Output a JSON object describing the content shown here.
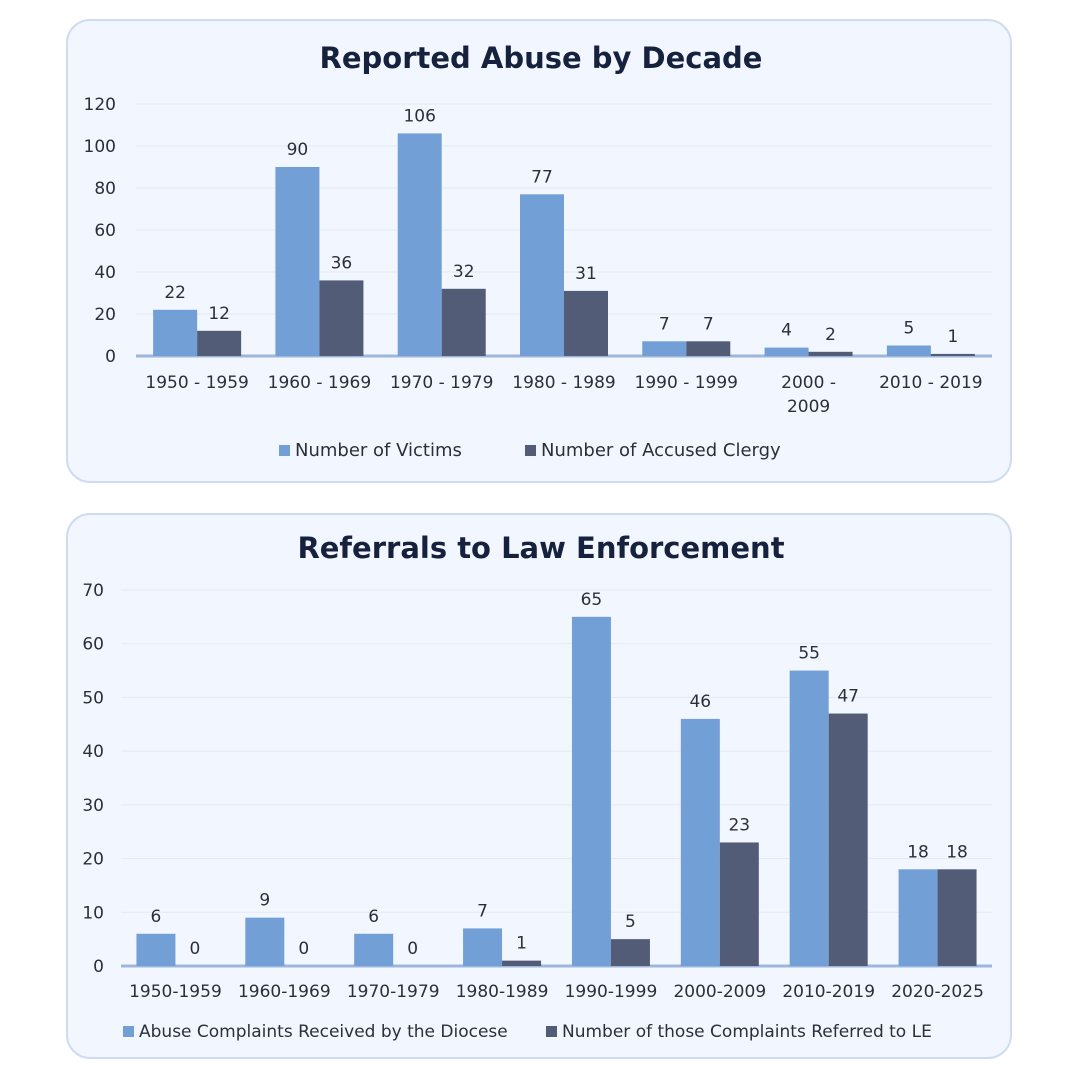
{
  "colors": {
    "victims": "#729fd6",
    "clergy": "#525c77",
    "card_bg": "#f2f7ff",
    "card_border": "#cfdcef"
  },
  "chart_data": [
    {
      "type": "bar",
      "title": "Reported Abuse by Decade",
      "categories": [
        [
          "1950 - 1959"
        ],
        [
          "1960 - 1969"
        ],
        [
          "1970 - 1979"
        ],
        [
          "1980 - 1989"
        ],
        [
          "1990 - 1999"
        ],
        [
          "2000 -",
          "2009"
        ],
        [
          "2010 - 2019"
        ]
      ],
      "series": [
        {
          "name": "Number of Victims",
          "values": [
            22,
            90,
            106,
            77,
            7,
            4,
            5
          ]
        },
        {
          "name": "Number of Accused Clergy",
          "values": [
            12,
            36,
            32,
            31,
            7,
            2,
            1
          ]
        }
      ],
      "ylim": [
        0,
        120
      ],
      "yticks": [
        0,
        20,
        40,
        60,
        80,
        100,
        120
      ],
      "grid": true,
      "legend": "bottom"
    },
    {
      "type": "bar",
      "title": "Referrals to Law Enforcement",
      "categories": [
        [
          "1950-1959"
        ],
        [
          "1960-1969"
        ],
        [
          "1970-1979"
        ],
        [
          "1980-1989"
        ],
        [
          "1990-1999"
        ],
        [
          "2000-2009"
        ],
        [
          "2010-2019"
        ],
        [
          "2020-2025"
        ]
      ],
      "series": [
        {
          "name": "Abuse Complaints Received by the Diocese",
          "values": [
            6,
            9,
            6,
            7,
            65,
            46,
            55,
            18
          ]
        },
        {
          "name": "Number of those Complaints Referred to LE",
          "values": [
            0,
            0,
            0,
            1,
            5,
            23,
            47,
            18
          ]
        }
      ],
      "ylim": [
        0,
        70
      ],
      "yticks": [
        0,
        10,
        20,
        30,
        40,
        50,
        60,
        70
      ],
      "grid": true,
      "legend": "bottom"
    }
  ]
}
